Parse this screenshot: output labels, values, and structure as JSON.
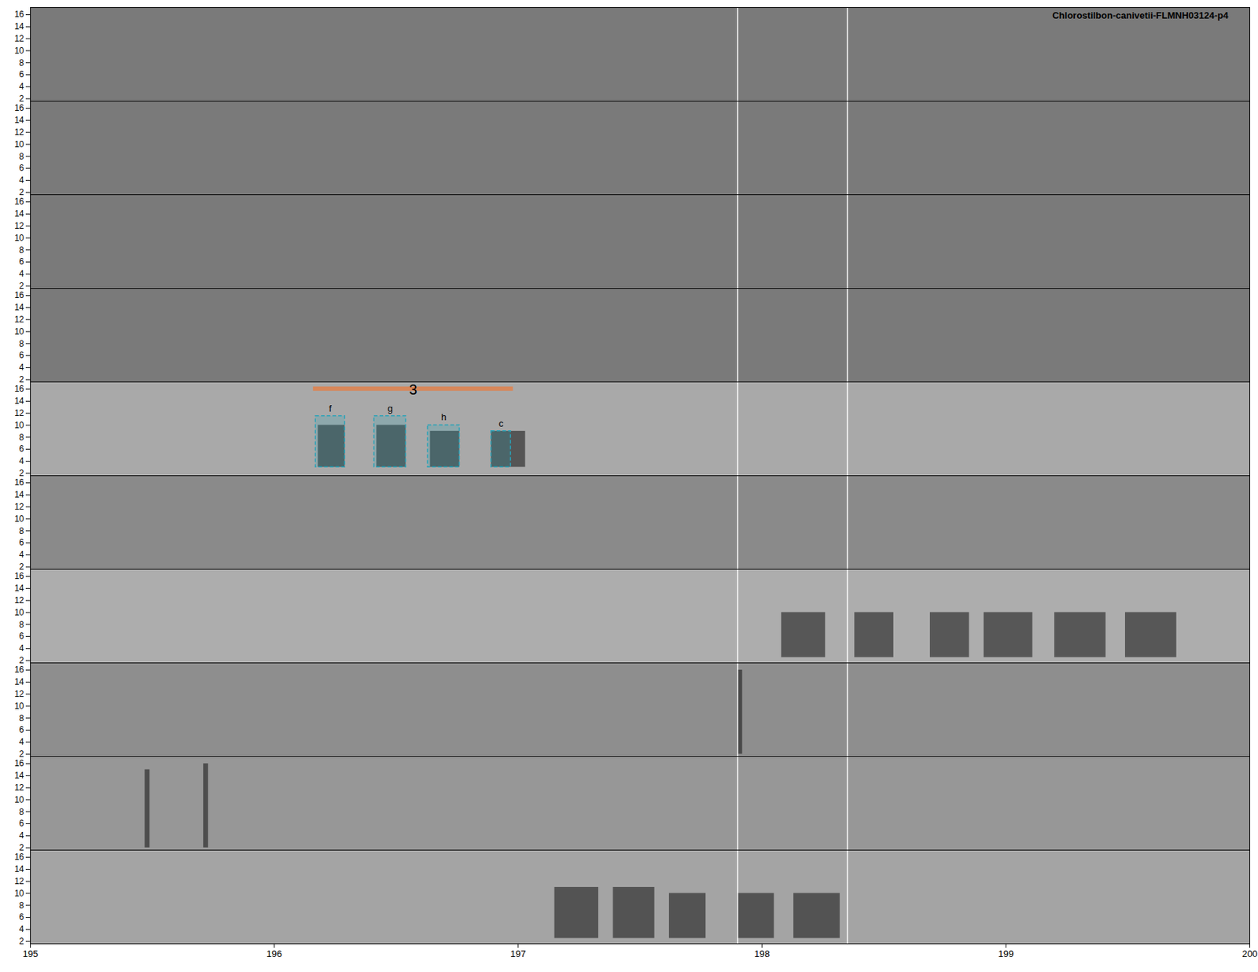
{
  "chart_data": {
    "type": "spectrogram",
    "title": "Chlorostilbon-canivetii-FLMNH03124-p4",
    "xlim": [
      195,
      200
    ],
    "xticks": [
      195,
      196,
      197,
      198,
      199,
      200
    ],
    "ylim": [
      1.6,
      17.2
    ],
    "yticks": [
      2,
      4,
      6,
      8,
      10,
      12,
      14,
      16
    ],
    "panels": 10,
    "colors": [
      "#7a7a7a",
      "#7a7a7a",
      "#7a7a7a",
      "#7a7a7a",
      "#a9a9a9",
      "#8a8a8a",
      "#adadad",
      "#8e8e8e",
      "#979797",
      "#a4a4a4"
    ],
    "markers": [
      197.9,
      198.35
    ],
    "bar": {
      "label": "3",
      "panel": 5,
      "x0": 196.16,
      "x1": 196.98,
      "y": 16.1,
      "color": "#d8875a"
    },
    "boxes": [
      {
        "label": "f",
        "panel": 5,
        "x0": 196.17,
        "x1": 196.29,
        "y0": 3,
        "y1": 11.5
      },
      {
        "label": "g",
        "panel": 5,
        "x0": 196.41,
        "x1": 196.54,
        "y0": 3,
        "y1": 11.5
      },
      {
        "label": "h",
        "panel": 5,
        "x0": 196.63,
        "x1": 196.76,
        "y0": 3,
        "y1": 10
      },
      {
        "label": "c",
        "panel": 5,
        "x0": 196.89,
        "x1": 196.97,
        "y0": 3,
        "y1": 9
      }
    ],
    "syllables": [
      {
        "panel": 5,
        "x0": 196.18,
        "x1": 196.29,
        "y0": 3,
        "y1": 10
      },
      {
        "panel": 5,
        "x0": 196.42,
        "x1": 196.54,
        "y0": 3,
        "y1": 10
      },
      {
        "panel": 5,
        "x0": 196.64,
        "x1": 196.76,
        "y0": 3,
        "y1": 9
      },
      {
        "panel": 5,
        "x0": 196.89,
        "x1": 197.03,
        "y0": 3,
        "y1": 9
      },
      {
        "panel": 7,
        "x0": 198.08,
        "x1": 198.26,
        "y0": 2.5,
        "y1": 10
      },
      {
        "panel": 7,
        "x0": 198.38,
        "x1": 198.54,
        "y0": 2.5,
        "y1": 10
      },
      {
        "panel": 7,
        "x0": 198.69,
        "x1": 198.85,
        "y0": 2.5,
        "y1": 10
      },
      {
        "panel": 7,
        "x0": 198.91,
        "x1": 199.11,
        "y0": 2.5,
        "y1": 10
      },
      {
        "panel": 7,
        "x0": 199.2,
        "x1": 199.41,
        "y0": 2.5,
        "y1": 10
      },
      {
        "panel": 7,
        "x0": 199.49,
        "x1": 199.7,
        "y0": 2.5,
        "y1": 10
      },
      {
        "panel": 10,
        "x0": 197.15,
        "x1": 197.33,
        "y0": 2.5,
        "y1": 11
      },
      {
        "panel": 10,
        "x0": 197.39,
        "x1": 197.56,
        "y0": 2.5,
        "y1": 11
      },
      {
        "panel": 10,
        "x0": 197.62,
        "x1": 197.77,
        "y0": 2.5,
        "y1": 10
      },
      {
        "panel": 10,
        "x0": 197.9,
        "x1": 198.05,
        "y0": 2.5,
        "y1": 10
      },
      {
        "panel": 10,
        "x0": 198.13,
        "x1": 198.32,
        "y0": 2.5,
        "y1": 10
      },
      {
        "panel": 8,
        "x0": 197.9,
        "x1": 197.92,
        "y0": 2,
        "y1": 16
      },
      {
        "panel": 9,
        "x0": 195.47,
        "x1": 195.49,
        "y0": 2,
        "y1": 15
      },
      {
        "panel": 9,
        "x0": 195.71,
        "x1": 195.73,
        "y0": 2,
        "y1": 16
      }
    ]
  }
}
